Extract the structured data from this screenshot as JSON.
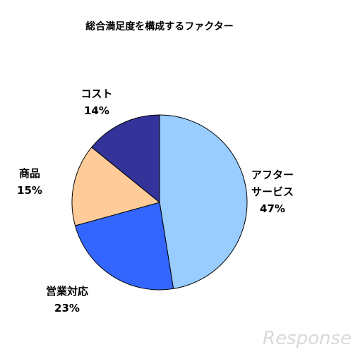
{
  "chart_data": {
    "type": "pie",
    "title": "総合満足度を構成するファクター",
    "start_angle_deg": 0,
    "direction": "clockwise",
    "slices": [
      {
        "label": [
          "アフター",
          "サービス"
        ],
        "value": 47,
        "value_label": "47%",
        "color": "#99ccff"
      },
      {
        "label": [
          "営業対応"
        ],
        "value": 23,
        "value_label": "23%",
        "color": "#3366ff"
      },
      {
        "label": [
          "商品"
        ],
        "value": 15,
        "value_label": "15%",
        "color": "#ffcc99"
      },
      {
        "label": [
          "コスト"
        ],
        "value": 14,
        "value_label": "14%",
        "color": "#333399"
      }
    ]
  },
  "watermark": "Response."
}
